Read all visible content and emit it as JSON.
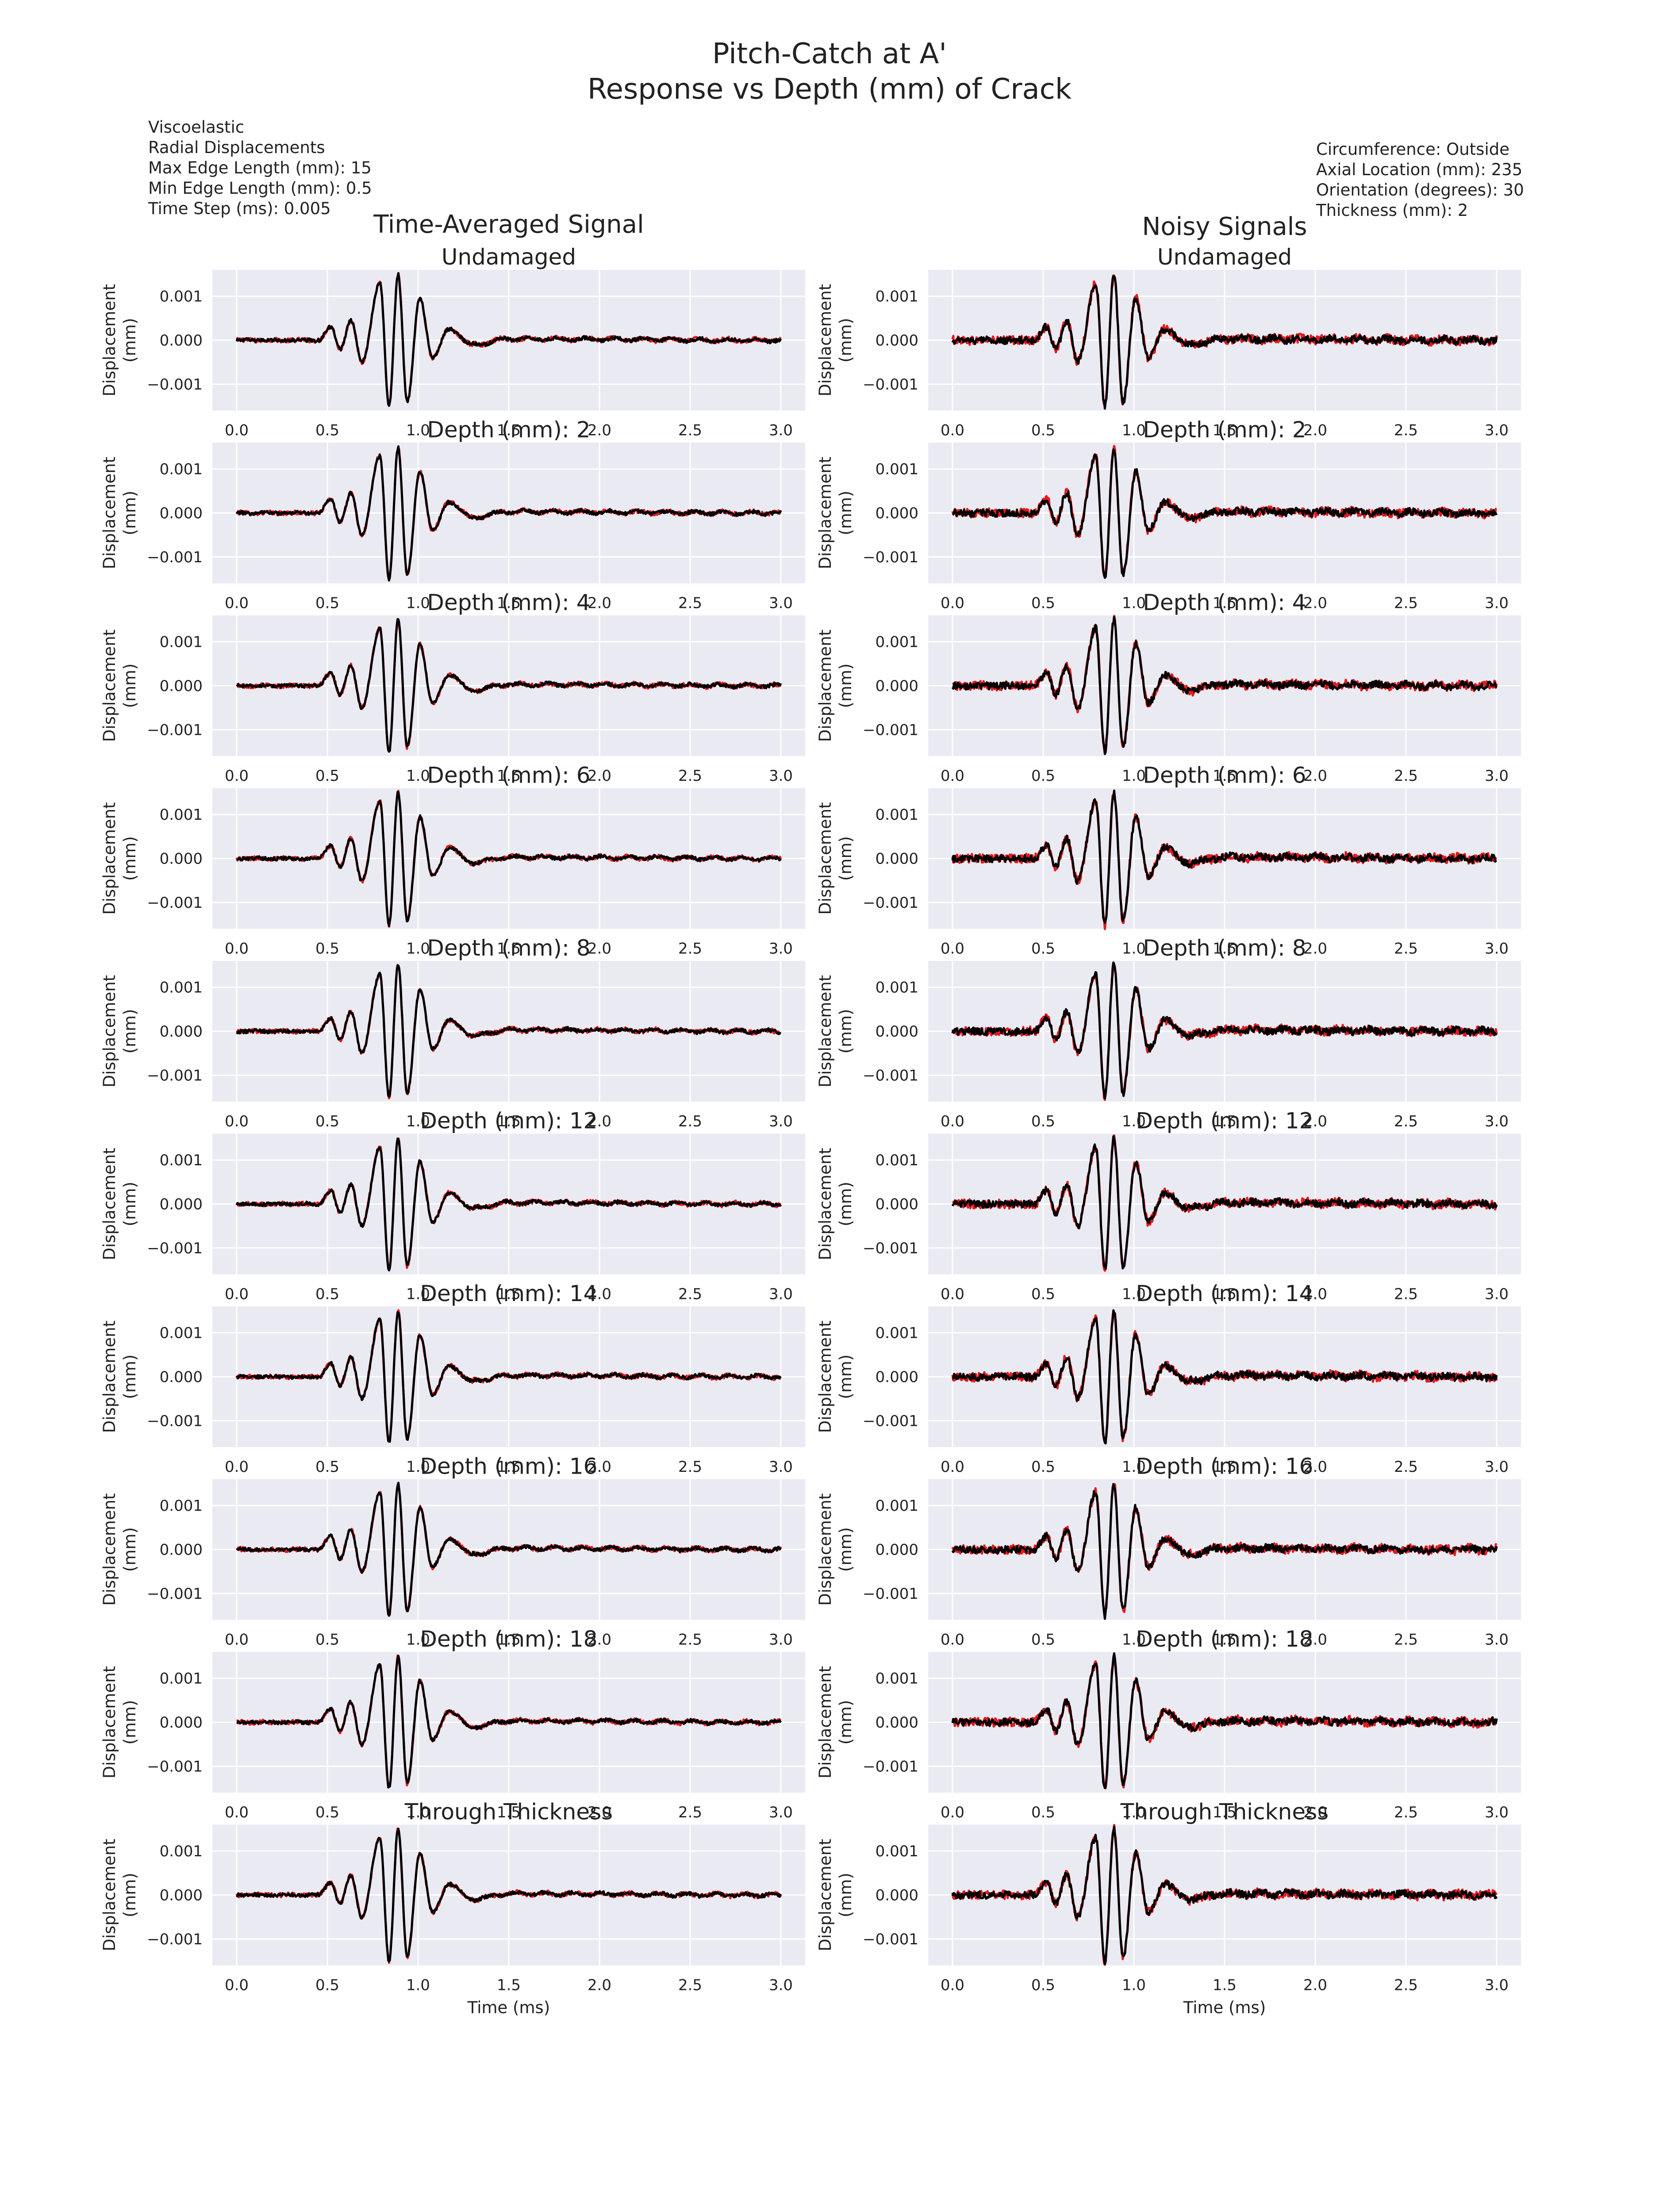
{
  "figure": {
    "title_line1": "Pitch-Catch at A'",
    "title_line2": "Response vs Depth (mm) of Crack",
    "left_info": [
      "Viscoelastic",
      "Radial Displacements",
      "Max Edge Length (mm): 15",
      "Min Edge Length (mm): 0.5",
      "Time Step (ms): 0.005"
    ],
    "right_info": [
      "Circumference: Outside",
      "Axial Location (mm): 235",
      "Orientation (degrees): 30",
      "Thickness (mm): 2"
    ],
    "columns": [
      "Time-Averaged Signal",
      "Noisy Signals"
    ],
    "colors": {
      "background": "#eaeaf2",
      "grid": "#ffffff",
      "signal_red": "#e41a1c",
      "signal_black": "#000000"
    }
  },
  "chart_data": {
    "type": "line",
    "x_range": [
      0.0,
      3.0
    ],
    "x_ticks": [
      "0.0",
      "0.5",
      "1.0",
      "1.5",
      "2.0",
      "2.5",
      "3.0"
    ],
    "y_ticks": [
      "0.001",
      "0.000",
      "−0.001"
    ],
    "y_tick_values": [
      0.001,
      0.0,
      -0.001
    ],
    "ylim": [
      -0.0016,
      0.0016
    ],
    "xlabel": "Time (ms)",
    "ylabel_line1": "Displacement",
    "ylabel_line2": "(mm)",
    "rows": [
      "Undamaged",
      "Depth (mm): 2",
      "Depth (mm): 4",
      "Depth (mm): 6",
      "Depth (mm): 8",
      "Depth (mm): 12",
      "Depth (mm): 14",
      "Depth (mm): 16",
      "Depth (mm): 18",
      "Through Thickness"
    ],
    "signal": {
      "description_points": {
        "t": [
          0.0,
          0.45,
          0.52,
          0.57,
          0.63,
          0.69,
          0.79,
          0.84,
          0.89,
          0.94,
          1.01,
          1.08,
          1.17,
          1.3,
          1.5,
          3.0
        ],
        "y": [
          0.0,
          0.0,
          0.0003,
          -0.0002,
          0.00045,
          -0.0005,
          0.0013,
          -0.0015,
          0.0015,
          -0.0014,
          0.00095,
          -0.0004,
          0.00025,
          -0.0001,
          3e-05,
          0.0
        ]
      }
    }
  }
}
